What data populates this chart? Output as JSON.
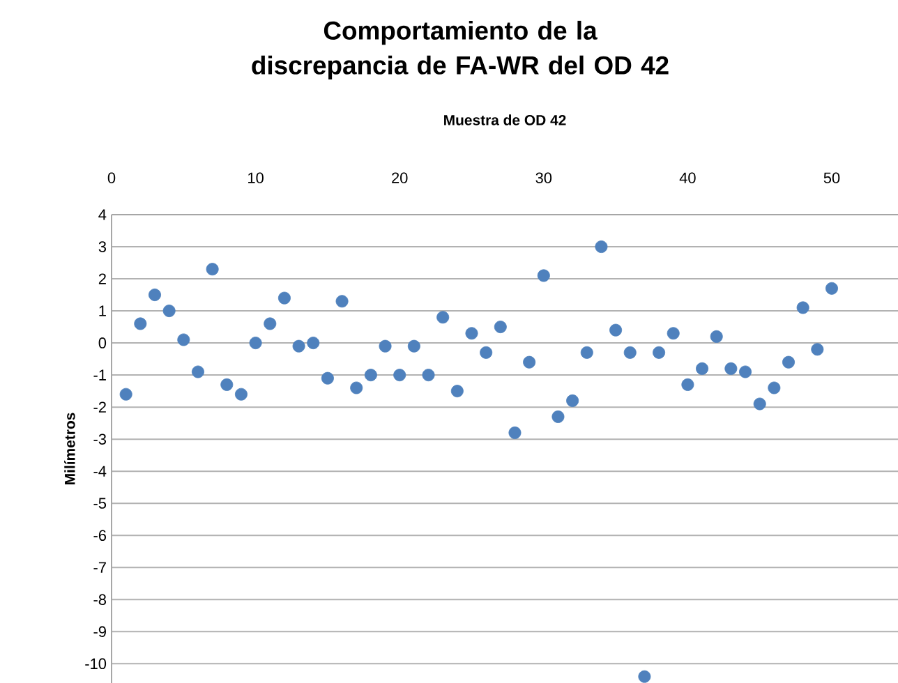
{
  "chart_data": {
    "type": "scatter",
    "title": "Comportamiento de la discrepancia de FA-WR del OD 42",
    "xlabel": "Muestra de OD 42",
    "ylabel": "Milímetros",
    "x": [
      1,
      2,
      3,
      4,
      5,
      6,
      7,
      8,
      9,
      10,
      11,
      12,
      13,
      14,
      15,
      16,
      17,
      18,
      19,
      20,
      21,
      22,
      23,
      24,
      25,
      26,
      27,
      28,
      29,
      30,
      31,
      32,
      33,
      34,
      35,
      36,
      37,
      38,
      39,
      40,
      41,
      42,
      43,
      44,
      45,
      46,
      47,
      48,
      49,
      50
    ],
    "series": [
      {
        "color": "#4f81bd",
        "values": [
          -1.6,
          0.6,
          1.5,
          1.0,
          0.1,
          -0.9,
          2.3,
          -1.3,
          -1.6,
          0.0,
          0.6,
          1.4,
          -0.1,
          0.0,
          -1.1,
          1.3,
          -1.4,
          -1.0,
          -0.1,
          -1.0,
          -0.1,
          -1.0,
          0.8,
          -1.5,
          0.3,
          -0.3,
          0.5,
          -2.8,
          -0.6,
          2.1,
          -2.3,
          -1.8,
          -0.3,
          3.0,
          0.4,
          -0.3,
          -10.4,
          -0.3,
          0.3,
          -1.3,
          -0.8,
          0.2,
          -0.8,
          -0.9,
          -1.9,
          -1.4,
          -0.6,
          1.1,
          -0.2,
          1.7
        ]
      }
    ],
    "xlim": [
      0,
      54.6
    ],
    "ylim": [
      -10.6,
      4
    ],
    "xticks": [
      0,
      10,
      20,
      30,
      40,
      50
    ],
    "yticks": [
      -10,
      -9,
      -8,
      -7,
      -6,
      -5,
      -4,
      -3,
      -2,
      -1,
      0,
      1,
      2,
      3,
      4
    ],
    "grid": "y"
  }
}
